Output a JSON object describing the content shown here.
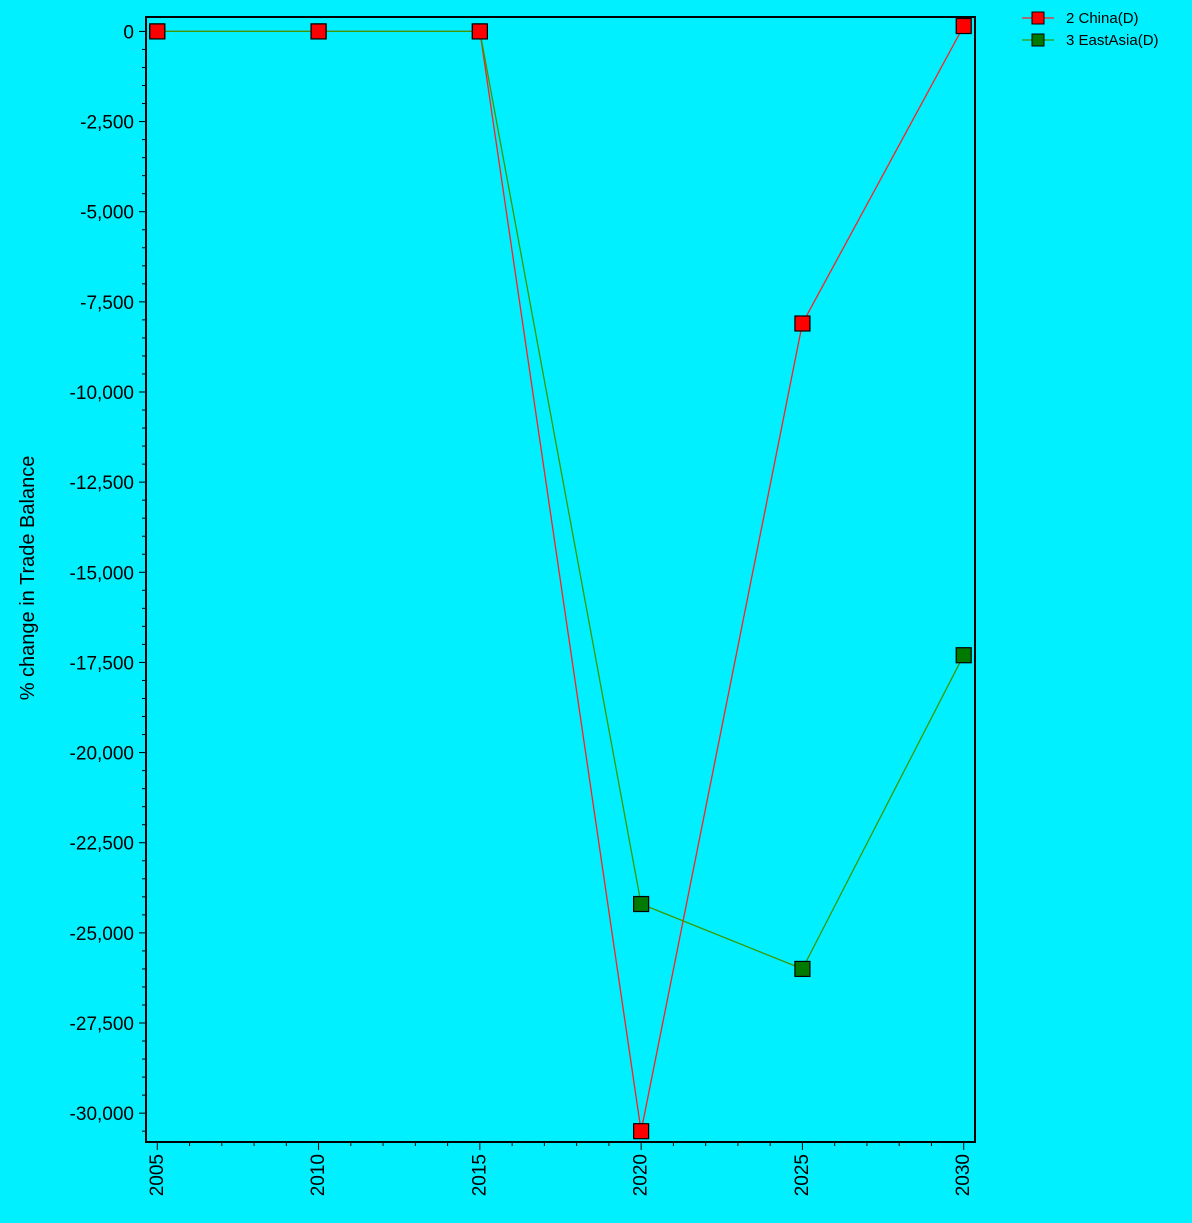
{
  "chart_data": {
    "type": "line",
    "title": "",
    "xlabel": "",
    "ylabel": "% change in Trade Balance",
    "x": [
      2005,
      2010,
      2015,
      2020,
      2025,
      2030
    ],
    "x_tick_labels": [
      "2005",
      "2010",
      "2015",
      "2020",
      "2025",
      "2030"
    ],
    "ylim": [
      -30800,
      400
    ],
    "y_ticks": [
      0,
      -2500,
      -5000,
      -7500,
      -10000,
      -12500,
      -15000,
      -17500,
      -20000,
      -22500,
      -25000,
      -27500,
      -30000
    ],
    "y_tick_labels": [
      "0",
      "-2,500",
      "-5,000",
      "-7,500",
      "-10,000",
      "-12,500",
      "-15,000",
      "-17,500",
      "-20,000",
      "-22,500",
      "-25,000",
      "-27,500",
      "-30,000"
    ],
    "grid": false,
    "legend_position": "top-right",
    "background": "#00f0ff",
    "series": [
      {
        "name": "2 China(D)",
        "line_color": "#ff2020",
        "marker_color": "#ff0000",
        "values": [
          0,
          0,
          0,
          -30500,
          -8100,
          150
        ]
      },
      {
        "name": "3 EastAsia(D)",
        "line_color": "#3a9a00",
        "marker_color": "#007a00",
        "values": [
          0,
          0,
          0,
          -24200,
          -26000,
          -17300
        ]
      }
    ]
  }
}
